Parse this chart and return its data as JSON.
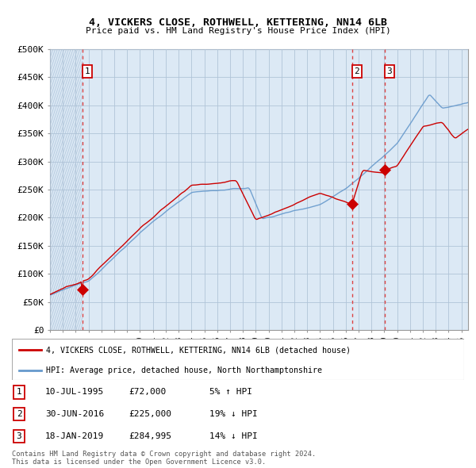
{
  "title": "4, VICKERS CLOSE, ROTHWELL, KETTERING, NN14 6LB",
  "subtitle": "Price paid vs. HM Land Registry's House Price Index (HPI)",
  "ylabel_values": [
    "£0",
    "£50K",
    "£100K",
    "£150K",
    "£200K",
    "£250K",
    "£300K",
    "£350K",
    "£400K",
    "£450K",
    "£500K"
  ],
  "yticks": [
    0,
    50000,
    100000,
    150000,
    200000,
    250000,
    300000,
    350000,
    400000,
    450000,
    500000
  ],
  "xmin": 1993.0,
  "xmax": 2025.5,
  "ymin": 0,
  "ymax": 500000,
  "legend_line1": "4, VICKERS CLOSE, ROTHWELL, KETTERING, NN14 6LB (detached house)",
  "legend_line2": "HPI: Average price, detached house, North Northamptonshire",
  "sale_points": [
    {
      "year": 1995.53,
      "price": 72000,
      "label": "1"
    },
    {
      "year": 2016.5,
      "price": 225000,
      "label": "2"
    },
    {
      "year": 2019.05,
      "price": 284995,
      "label": "3"
    }
  ],
  "vlines": [
    1995.53,
    2016.5,
    2019.05
  ],
  "table_rows": [
    {
      "num": "1",
      "date": "10-JUL-1995",
      "price": "£72,000",
      "hpi": "5% ↑ HPI"
    },
    {
      "num": "2",
      "date": "30-JUN-2016",
      "price": "£225,000",
      "hpi": "19% ↓ HPI"
    },
    {
      "num": "3",
      "date": "18-JAN-2019",
      "price": "£284,995",
      "hpi": "14% ↓ HPI"
    }
  ],
  "footnote": "Contains HM Land Registry data © Crown copyright and database right 2024.\nThis data is licensed under the Open Government Licence v3.0.",
  "price_color": "#cc0000",
  "hpi_color": "#6699cc",
  "bg_color": "#dce9f5",
  "grid_color": "#b0c4d8",
  "vline_color": "#dd4444"
}
